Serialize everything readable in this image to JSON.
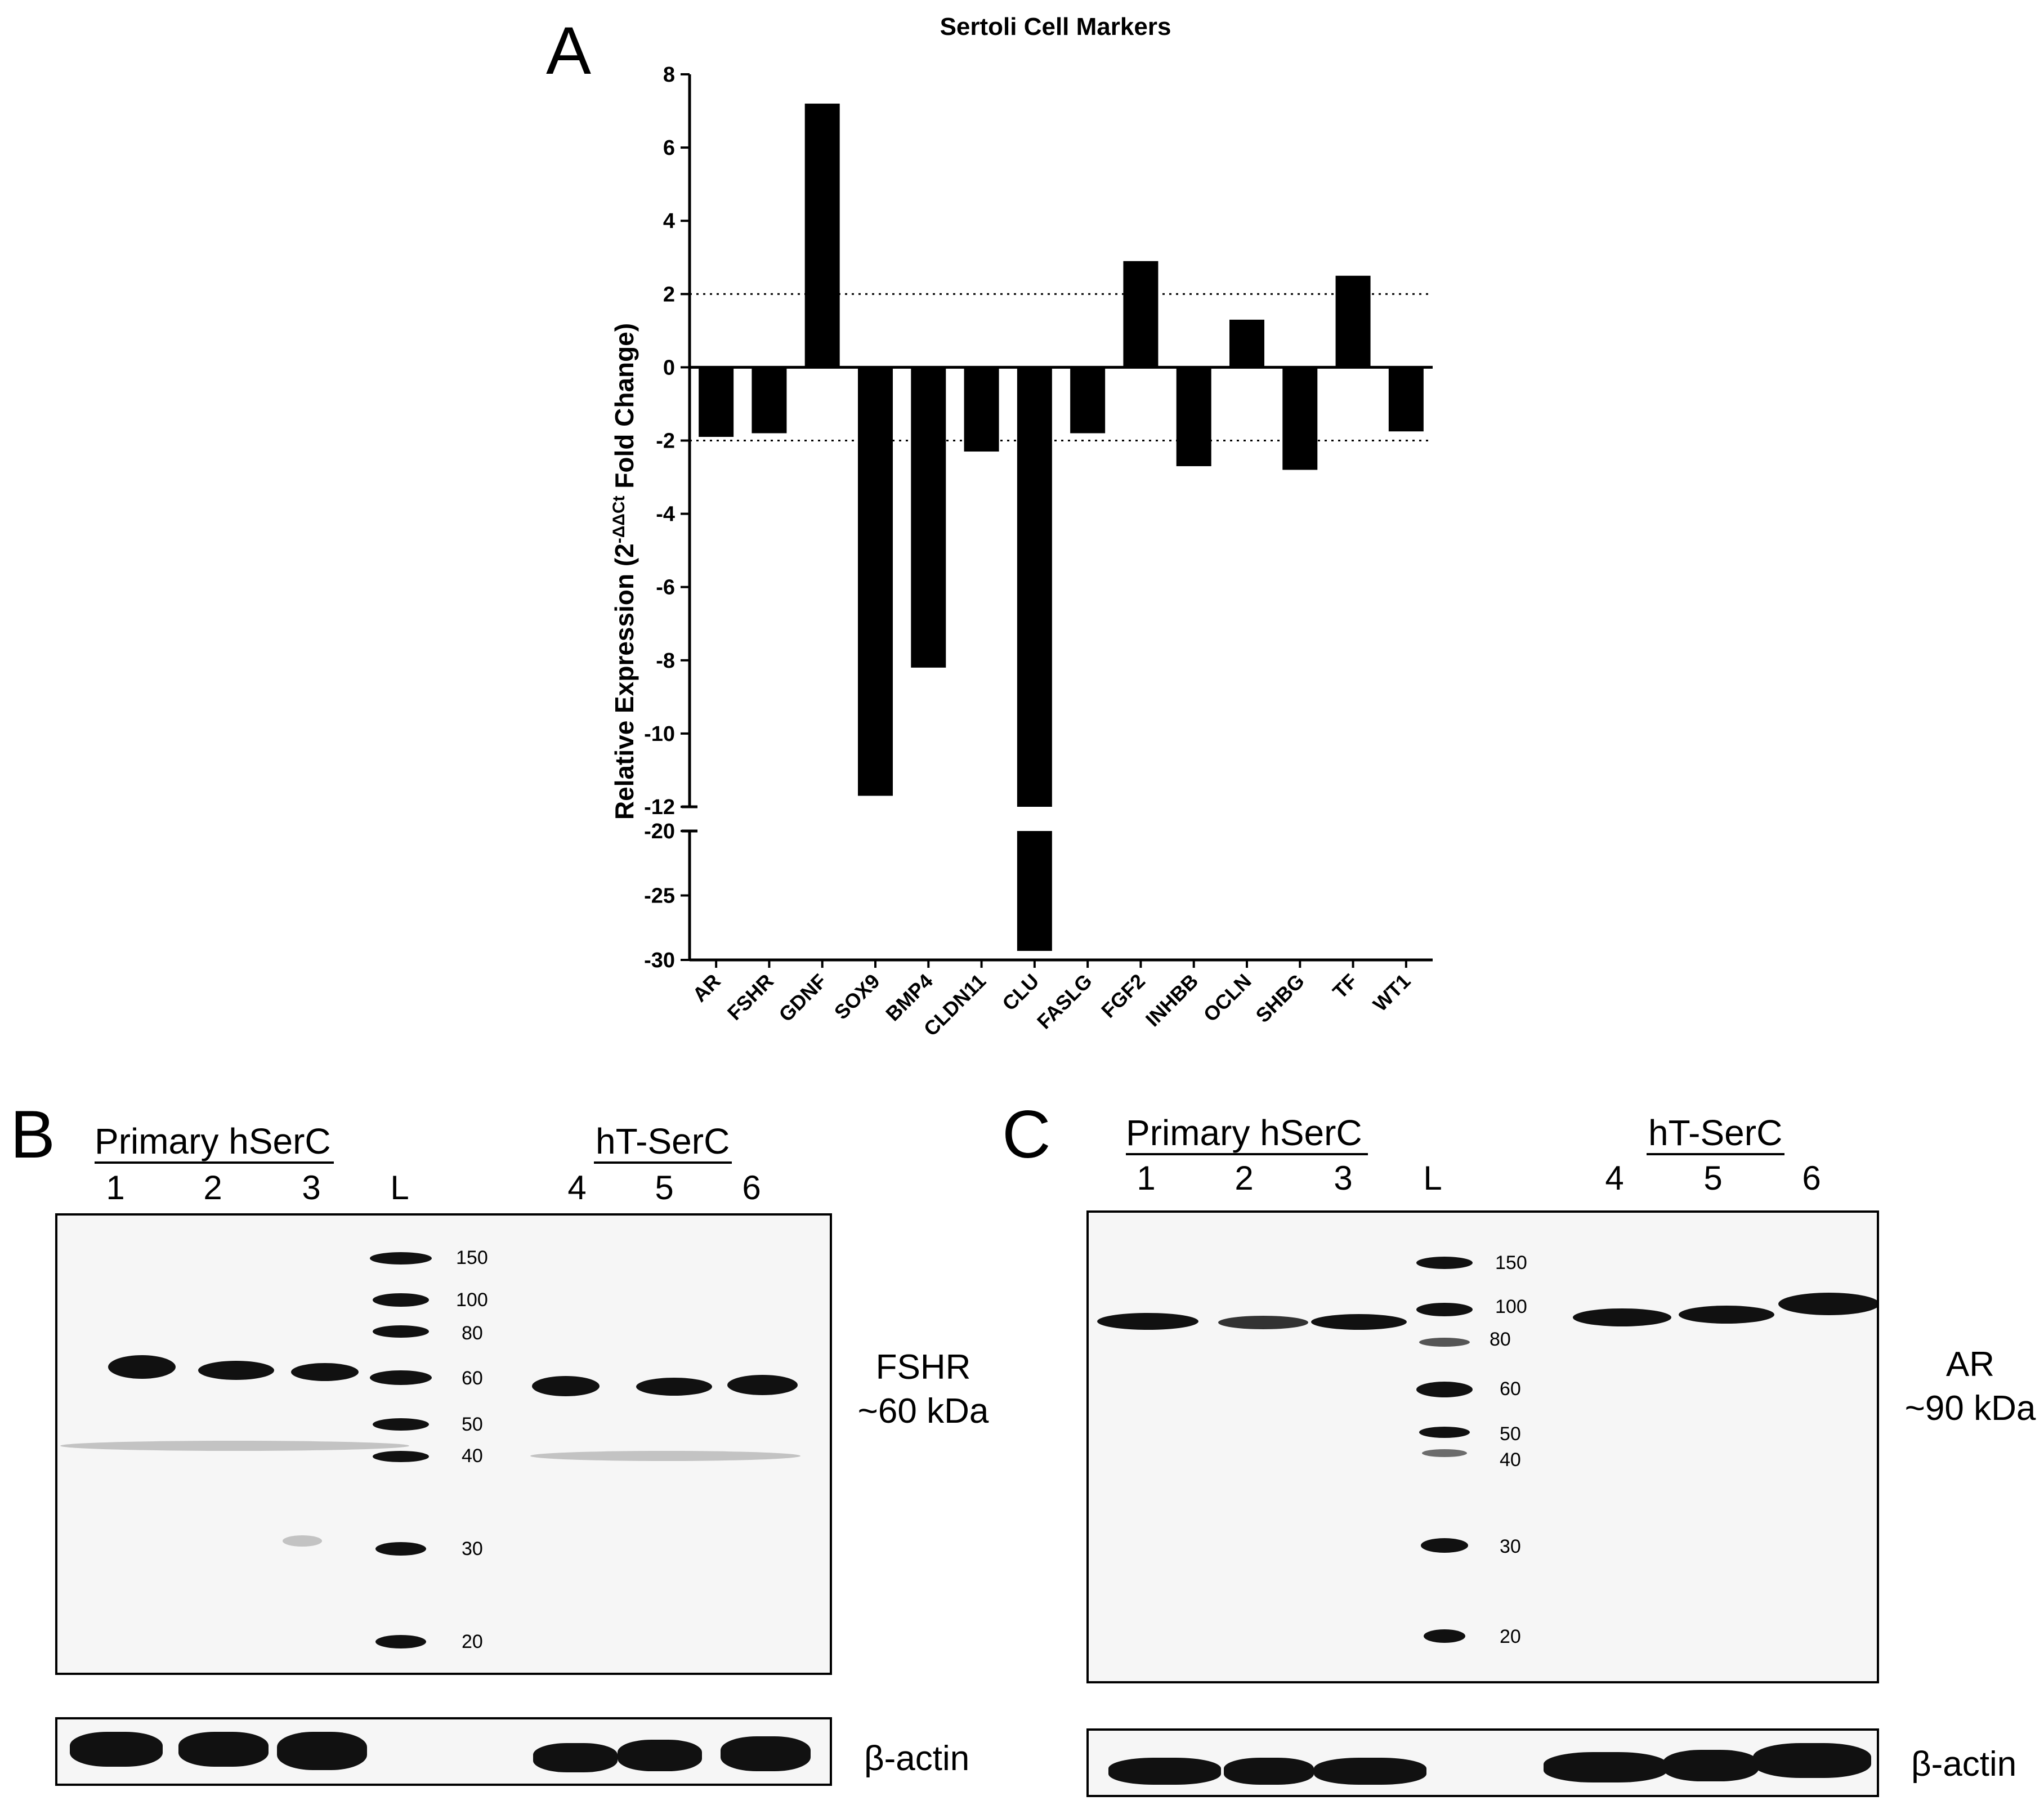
{
  "panel_a": {
    "letter": "A",
    "chart_data": {
      "type": "bar",
      "title": "Sertoli Cell Markers",
      "ylabel": "Relative Expression (2",
      "ylabel_sup": "-ΔΔCt",
      "ylabel_tail": " Fold Change)",
      "categories": [
        "AR",
        "FSHR",
        "GDNF",
        "SOX9",
        "BMP4",
        "CLDN11",
        "CLU",
        "FASLG",
        "FGF2",
        "INHBB",
        "OCLN",
        "SHBG",
        "TF",
        "WT1"
      ],
      "values": [
        -1.9,
        -1.8,
        7.2,
        -11.7,
        -8.2,
        -2.3,
        -29.3,
        -1.8,
        2.9,
        -2.7,
        1.3,
        -2.8,
        2.5,
        -1.75
      ],
      "y_axis_broken": true,
      "upper_segment": {
        "ylim": [
          -12,
          8
        ],
        "ticks": [
          "8",
          "6",
          "4",
          "2",
          "0",
          "-2",
          "-4",
          "-6",
          "-8",
          "-10",
          "-12"
        ]
      },
      "lower_segment": {
        "ylim": [
          -30,
          -20
        ],
        "ticks": [
          "-20",
          "-25",
          "-30"
        ]
      },
      "reference_lines": [
        2,
        -2
      ],
      "grid": false,
      "bar_color": "#000000"
    }
  },
  "panel_b": {
    "letter": "B",
    "group_left": "Primary hSerC",
    "group_right": "hT-SerC",
    "lanes": [
      "1",
      "2",
      "3",
      "L",
      "4",
      "5",
      "6"
    ],
    "ladder": [
      "150",
      "100",
      "80",
      "60",
      "50",
      "40",
      "30",
      "20"
    ],
    "target_label": "FSHR",
    "target_size": "~60 kDa",
    "loading_label": "β-actin"
  },
  "panel_c": {
    "letter": "C",
    "group_left": "Primary hSerC",
    "group_right": "hT-SerC",
    "lanes": [
      "1",
      "2",
      "3",
      "L",
      "4",
      "5",
      "6"
    ],
    "ladder": [
      "150",
      "100",
      "80",
      "60",
      "50",
      "40",
      "30",
      "20"
    ],
    "target_label": "AR",
    "target_size": "~90 kDa",
    "loading_label": "β-actin"
  }
}
